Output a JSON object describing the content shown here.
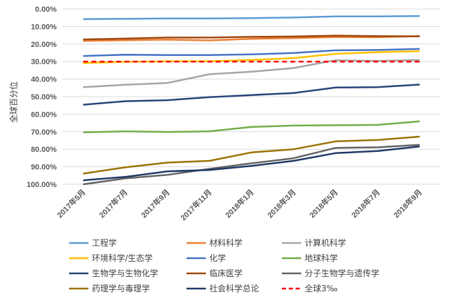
{
  "chart_data": {
    "type": "line",
    "ylabel": "全球百分位",
    "y_reversed": true,
    "ylim": [
      0,
      100
    ],
    "y_ticks": [
      "0.00%",
      "10.00%",
      "20.00%",
      "30.00%",
      "40.00%",
      "50.00%",
      "60.00%",
      "70.00%",
      "80.00%",
      "90.00%",
      "100.00%"
    ],
    "categories": [
      "2017年5月",
      "2017年7月",
      "2017年9月",
      "2017年11月",
      "2018年1月",
      "2018年3月",
      "2018年5月",
      "2018年7月",
      "2018年9月"
    ],
    "grid": "horizontal",
    "legend": "bottom",
    "series": [
      {
        "name": "工程学",
        "color": "#5B9BD5",
        "dash": false,
        "values": [
          5.8,
          5.6,
          5.4,
          5.4,
          5.2,
          4.9,
          4.2,
          4.2,
          4.0
        ]
      },
      {
        "name": "材料科学",
        "color": "#ED7D31",
        "dash": false,
        "values": [
          18.2,
          17.8,
          17.5,
          17.9,
          17.0,
          16.6,
          16.0,
          16.1,
          15.5
        ]
      },
      {
        "name": "计算机科学",
        "color": "#A5A5A5",
        "dash": false,
        "values": [
          44.6,
          43.2,
          42.2,
          37.2,
          35.8,
          33.7,
          29.2,
          29.6,
          29.1
        ]
      },
      {
        "name": "环境科学/生态学",
        "color": "#FFC000",
        "dash": false,
        "values": [
          30.9,
          30.1,
          29.8,
          29.8,
          29.1,
          28.0,
          25.6,
          24.6,
          24.1
        ]
      },
      {
        "name": "化学",
        "color": "#4472C4",
        "dash": false,
        "values": [
          26.8,
          26.1,
          26.3,
          26.3,
          25.9,
          25.1,
          23.6,
          23.4,
          22.8
        ]
      },
      {
        "name": "地球科学",
        "color": "#70AD47",
        "dash": false,
        "values": [
          70.3,
          69.8,
          70.1,
          69.8,
          67.3,
          66.5,
          66.3,
          66.1,
          64.1
        ]
      },
      {
        "name": "生物学与生物化学",
        "color": "#264478",
        "dash": false,
        "values": [
          54.6,
          52.6,
          52.0,
          50.3,
          49.1,
          47.9,
          44.8,
          44.6,
          43.1
        ]
      },
      {
        "name": "临床医学",
        "color": "#9E480E",
        "dash": false,
        "values": [
          17.4,
          16.9,
          16.3,
          16.3,
          15.9,
          15.7,
          15.2,
          15.5,
          15.6
        ]
      },
      {
        "name": "分子生物学与遗传学",
        "color": "#636363",
        "dash": false,
        "values": [
          100.0,
          96.6,
          94.6,
          91.2,
          88.0,
          85.1,
          79.2,
          78.9,
          77.5
        ]
      },
      {
        "name": "药理学与毒理学",
        "color": "#997300",
        "dash": false,
        "values": [
          93.9,
          90.3,
          87.6,
          86.6,
          81.8,
          80.0,
          75.5,
          74.7,
          72.8
        ]
      },
      {
        "name": "社会科学总论",
        "color": "#203864",
        "dash": false,
        "values": [
          97.7,
          95.8,
          92.6,
          91.8,
          89.5,
          86.6,
          82.2,
          81.0,
          78.4
        ]
      },
      {
        "name": "全球3‰",
        "color": "#FF0000",
        "dash": true,
        "values": [
          30,
          30,
          30,
          30,
          30,
          30,
          30,
          30,
          30
        ]
      }
    ]
  }
}
